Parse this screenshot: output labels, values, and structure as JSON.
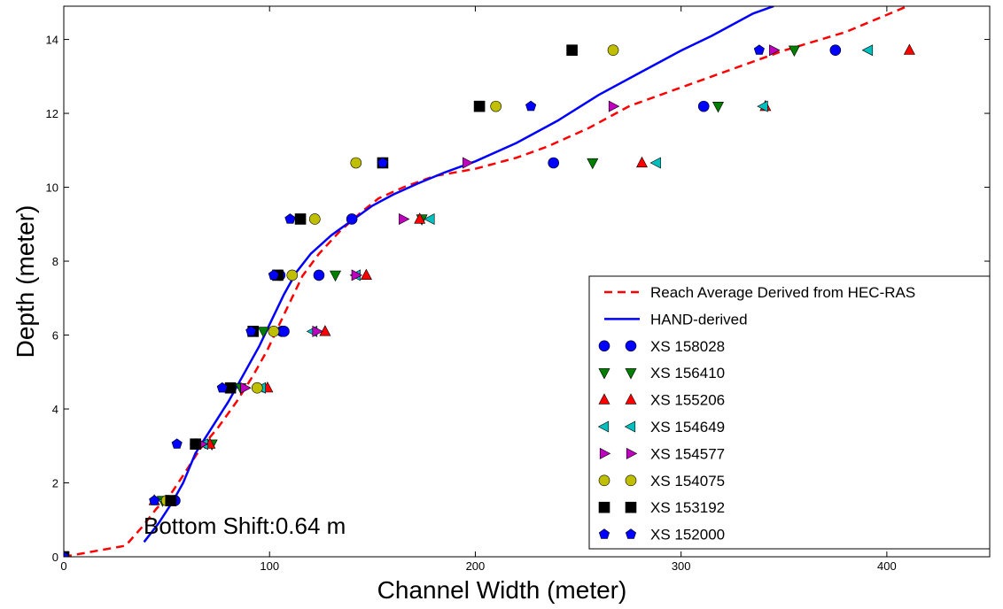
{
  "chart_data": {
    "type": "scatter",
    "xlabel": "Channel Width (meter)",
    "ylabel": "Depth (meter)",
    "xlim": [
      0,
      450
    ],
    "ylim": [
      0,
      14.9
    ],
    "xticks": [
      0,
      100,
      200,
      300,
      400
    ],
    "yticks": [
      0,
      2,
      4,
      6,
      8,
      10,
      12,
      14
    ],
    "grid": false,
    "legend_position": "lower-right",
    "annotation": "Bottom Shift:0.64 m",
    "lines": [
      {
        "name": "Reach Average Derived from HEC-RAS",
        "color": "#ff0000",
        "style": "dashed",
        "points": [
          [
            0,
            0
          ],
          [
            15,
            0.15
          ],
          [
            30,
            0.3
          ],
          [
            38,
            0.8
          ],
          [
            45,
            1.3
          ],
          [
            52,
            1.7
          ],
          [
            58,
            2.2
          ],
          [
            66,
            2.9
          ],
          [
            75,
            3.5
          ],
          [
            84,
            4.2
          ],
          [
            92,
            4.9
          ],
          [
            99,
            5.6
          ],
          [
            104,
            6.2
          ],
          [
            110,
            6.9
          ],
          [
            116,
            7.6
          ],
          [
            124,
            8.2
          ],
          [
            134,
            8.8
          ],
          [
            144,
            9.3
          ],
          [
            153,
            9.7
          ],
          [
            165,
            10.0
          ],
          [
            180,
            10.3
          ],
          [
            200,
            10.5
          ],
          [
            220,
            10.8
          ],
          [
            235,
            11.1
          ],
          [
            255,
            11.6
          ],
          [
            275,
            12.2
          ],
          [
            300,
            12.7
          ],
          [
            325,
            13.2
          ],
          [
            350,
            13.7
          ],
          [
            380,
            14.2
          ],
          [
            410,
            14.9
          ]
        ]
      },
      {
        "name": "HAND-derived",
        "color": "#0000ff",
        "style": "solid",
        "points": [
          [
            39,
            0.4
          ],
          [
            46,
            0.9
          ],
          [
            53,
            1.5
          ],
          [
            58,
            2.0
          ],
          [
            64,
            2.8
          ],
          [
            72,
            3.5
          ],
          [
            80,
            4.2
          ],
          [
            88,
            5.0
          ],
          [
            95,
            5.7
          ],
          [
            101,
            6.4
          ],
          [
            107,
            7.1
          ],
          [
            113,
            7.7
          ],
          [
            120,
            8.2
          ],
          [
            130,
            8.7
          ],
          [
            140,
            9.1
          ],
          [
            150,
            9.5
          ],
          [
            160,
            9.8
          ],
          [
            172,
            10.1
          ],
          [
            185,
            10.4
          ],
          [
            200,
            10.7
          ],
          [
            220,
            11.2
          ],
          [
            240,
            11.8
          ],
          [
            260,
            12.5
          ],
          [
            280,
            13.1
          ],
          [
            300,
            13.7
          ],
          [
            315,
            14.1
          ],
          [
            335,
            14.7
          ],
          [
            345,
            14.9
          ]
        ]
      }
    ],
    "series": [
      {
        "name": "XS 158028",
        "marker": "circle",
        "color": "#0000ff",
        "points": [
          [
            0,
            0
          ],
          [
            54,
            1.52
          ],
          [
            106,
            6.1
          ],
          [
            105,
            7.62
          ],
          [
            107,
            6.1
          ],
          [
            124,
            7.62
          ],
          [
            140,
            9.14
          ],
          [
            238,
            10.66
          ],
          [
            311,
            12.19
          ],
          [
            375,
            13.71
          ]
        ]
      },
      {
        "name": "XS 156410",
        "marker": "triangle-down",
        "color": "#008000",
        "points": [
          [
            0,
            0
          ],
          [
            48,
            1.52
          ],
          [
            72,
            3.05
          ],
          [
            86,
            4.57
          ],
          [
            97,
            6.1
          ],
          [
            132,
            7.62
          ],
          [
            174,
            9.14
          ],
          [
            257,
            10.66
          ],
          [
            318,
            12.19
          ],
          [
            355,
            13.71
          ]
        ]
      },
      {
        "name": "XS 155206",
        "marker": "triangle-up",
        "color": "#ff0000",
        "points": [
          [
            0,
            0
          ],
          [
            44,
            1.52
          ],
          [
            71,
            3.05
          ],
          [
            99,
            4.57
          ],
          [
            127,
            6.1
          ],
          [
            147,
            7.62
          ],
          [
            173,
            9.14
          ],
          [
            281,
            10.66
          ],
          [
            341,
            12.19
          ],
          [
            411,
            13.71
          ]
        ]
      },
      {
        "name": "XS 154649",
        "marker": "triangle-left",
        "color": "#00bfbf",
        "points": [
          [
            0,
            0
          ],
          [
            49,
            1.52
          ],
          [
            68,
            3.05
          ],
          [
            96,
            4.57
          ],
          [
            121,
            6.1
          ],
          [
            142,
            7.62
          ],
          [
            178,
            9.14
          ],
          [
            288,
            10.66
          ],
          [
            340,
            12.19
          ],
          [
            391,
            13.71
          ]
        ]
      },
      {
        "name": "XS 154577",
        "marker": "triangle-right",
        "color": "#bf00bf",
        "points": [
          [
            0,
            0
          ],
          [
            52,
            1.52
          ],
          [
            67,
            3.05
          ],
          [
            88,
            4.57
          ],
          [
            123,
            6.1
          ],
          [
            142,
            7.62
          ],
          [
            165,
            9.14
          ],
          [
            196,
            10.66
          ],
          [
            267,
            12.19
          ],
          [
            345,
            13.71
          ]
        ]
      },
      {
        "name": "XS 154075",
        "marker": "circle",
        "color": "#bfbf00",
        "points": [
          [
            0,
            0
          ],
          [
            50,
            1.52
          ],
          [
            64,
            3.05
          ],
          [
            94,
            4.57
          ],
          [
            102,
            6.1
          ],
          [
            111,
            7.62
          ],
          [
            122,
            9.14
          ],
          [
            142,
            10.66
          ],
          [
            210,
            12.19
          ],
          [
            267,
            13.71
          ]
        ]
      },
      {
        "name": "XS 153192",
        "marker": "square",
        "color": "#000000",
        "points": [
          [
            0,
            0
          ],
          [
            52,
            1.52
          ],
          [
            64,
            3.05
          ],
          [
            81,
            4.57
          ],
          [
            92,
            6.1
          ],
          [
            104,
            7.62
          ],
          [
            115,
            9.14
          ],
          [
            155,
            10.66
          ],
          [
            202,
            12.19
          ],
          [
            247,
            13.71
          ]
        ]
      },
      {
        "name": "XS 152000",
        "marker": "pentagon",
        "color": "#0000ff",
        "points": [
          [
            0,
            0
          ],
          [
            44,
            1.52
          ],
          [
            55,
            3.05
          ],
          [
            77,
            4.57
          ],
          [
            91,
            6.1
          ],
          [
            102,
            7.62
          ],
          [
            110,
            9.14
          ],
          [
            155,
            10.66
          ],
          [
            227,
            12.19
          ],
          [
            338,
            13.71
          ]
        ]
      }
    ]
  }
}
